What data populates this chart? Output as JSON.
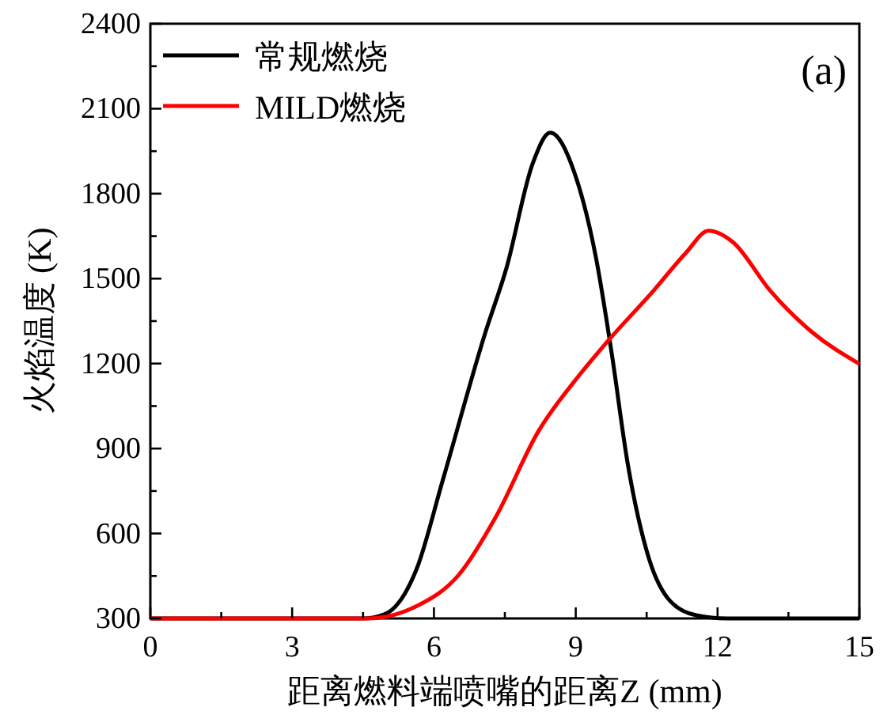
{
  "chart_data": {
    "type": "line",
    "xlabel": "距离燃料端喷嘴的距离Z (mm)",
    "ylabel": "火焰温度 (K)",
    "annotations": [
      "(a)"
    ],
    "xlim": [
      0,
      15
    ],
    "xticks": [
      0,
      3,
      6,
      9,
      12,
      15
    ],
    "ylim": [
      300,
      2400
    ],
    "yticks": [
      300,
      600,
      900,
      1200,
      1500,
      1800,
      2100,
      2400
    ],
    "legend": "top left",
    "grid": false,
    "line_style": "solid",
    "series": [
      {
        "name": "常规燃烧",
        "color": "#000000",
        "x": [
          0,
          4.5,
          4.96,
          5.63,
          6.19,
          7.09,
          7.53,
          8.09,
          8.46,
          8.98,
          9.43,
          9.76,
          10.1,
          10.55,
          11.0,
          11.55,
          12.2,
          15
        ],
        "values": [
          300,
          300,
          315,
          473,
          790,
          1311,
          1535,
          1907,
          2015,
          1870,
          1572,
          1237,
          846,
          511,
          361,
          311,
          300,
          300
        ]
      },
      {
        "name": "MILD燃烧",
        "color": "#ff0000",
        "x": [
          0,
          4.6,
          5.63,
          6.53,
          7.31,
          8.2,
          9.09,
          9.65,
          10.66,
          11.33,
          11.81,
          12.33,
          13.1,
          14.0,
          15
        ],
        "values": [
          300,
          300,
          343,
          455,
          659,
          958,
          1162,
          1274,
          1460,
          1591,
          1669,
          1628,
          1460,
          1311,
          1199
        ]
      }
    ]
  }
}
